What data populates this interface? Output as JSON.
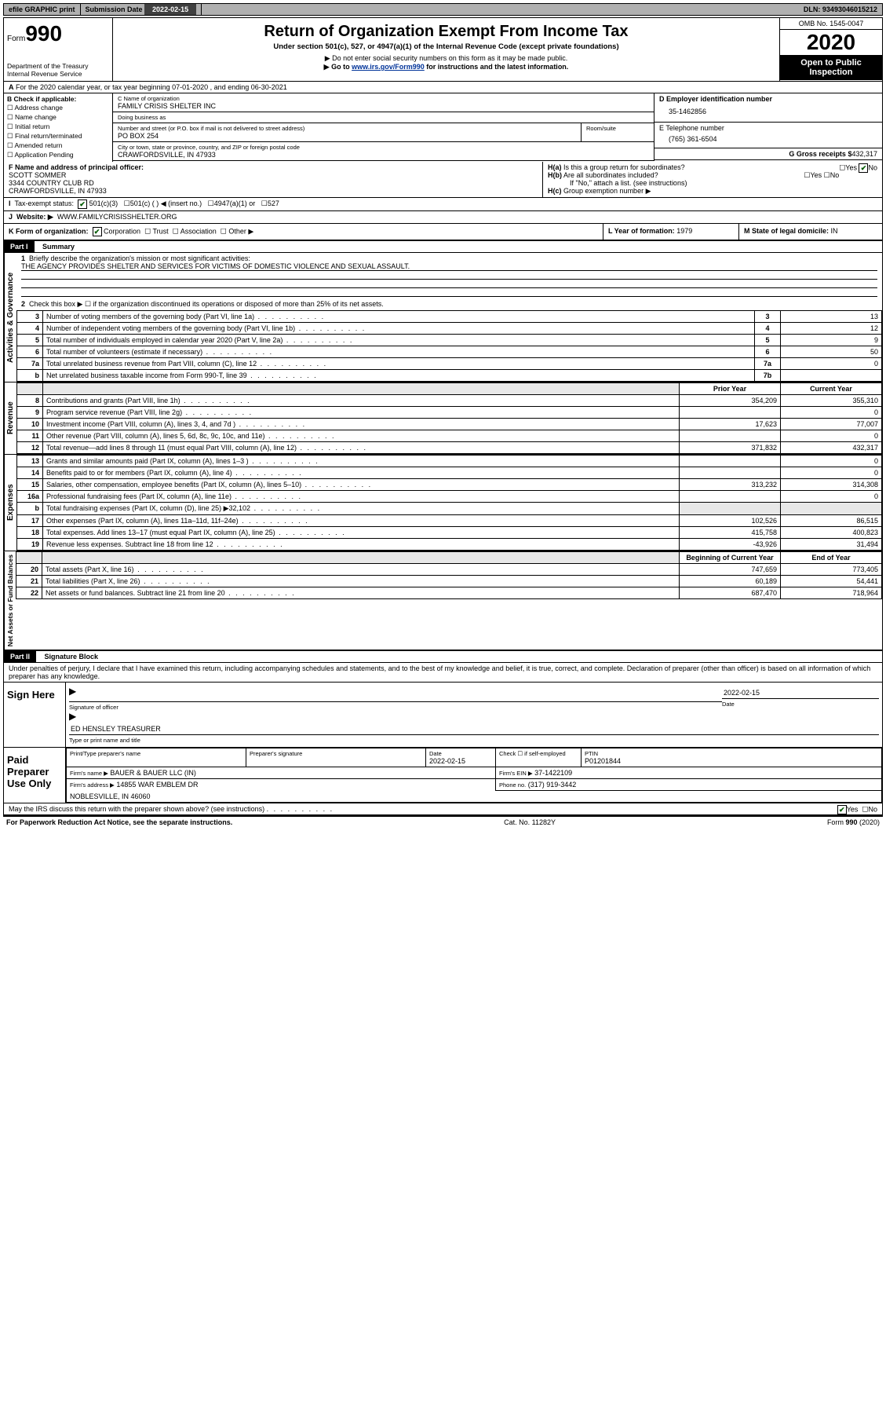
{
  "topbar": {
    "efile": "efile GRAPHIC print",
    "submission_label": "Submission Date",
    "submission_date": "2022-02-15",
    "dln_label": "DLN:",
    "dln": "93493046015212"
  },
  "header": {
    "form_label": "Form",
    "form_no": "990",
    "dept": "Department of the Treasury\nInternal Revenue Service",
    "title": "Return of Organization Exempt From Income Tax",
    "sub1": "Under section 501(c), 527, or 4947(a)(1) of the Internal Revenue Code (except private foundations)",
    "sub2": "▶ Do not enter social security numbers on this form as it may be made public.",
    "sub3_pre": "▶ Go to ",
    "sub3_link": "www.irs.gov/Form990",
    "sub3_post": " for instructions and the latest information.",
    "omb": "OMB No. 1545-0047",
    "year": "2020",
    "open": "Open to Public Inspection"
  },
  "lineA": "For the 2020 calendar year, or tax year beginning 07-01-2020   , and ending 06-30-2021",
  "colB": {
    "hdr": "B Check if applicable:",
    "opts": [
      "Address change",
      "Name change",
      "Initial return",
      "Final return/terminated",
      "Amended return",
      "Application Pending"
    ]
  },
  "org": {
    "c_label": "C Name of organization",
    "name": "FAMILY CRISIS SHELTER INC",
    "dba_label": "Doing business as",
    "dba": "",
    "addr_label": "Number and street (or P.O. box if mail is not delivered to street address)",
    "room_label": "Room/suite",
    "addr": "PO BOX 254",
    "city_label": "City or town, state or province, country, and ZIP or foreign postal code",
    "city": "CRAWFORDSVILLE, IN  47933"
  },
  "right": {
    "d_label": "D Employer identification number",
    "ein": "35-1462856",
    "e_label": "E Telephone number",
    "phone": "(765) 361-6504",
    "g_label": "G Gross receipts $",
    "gross": "432,317"
  },
  "f": {
    "label": "F  Name and address of principal officer:",
    "name": "SCOTT SOMMER",
    "addr1": "3344 COUNTRY CLUB RD",
    "addr2": "CRAWFORDSVILLE, IN  47933"
  },
  "h": {
    "a": "Is this a group return for subordinates?",
    "b": "Are all subordinates included?",
    "note": "If \"No,\" attach a list. (see instructions)",
    "c": "Group exemption number ▶"
  },
  "i": {
    "label": "Tax-exempt status:",
    "opts": [
      "501(c)(3)",
      "501(c) (  ) ◀ (insert no.)",
      "4947(a)(1) or",
      "527"
    ]
  },
  "j": {
    "label": "Website: ▶",
    "val": "WWW.FAMILYCRISISSHELTER.ORG"
  },
  "k": {
    "label": "K Form of organization:",
    "opts": [
      "Corporation",
      "Trust",
      "Association",
      "Other ▶"
    ]
  },
  "l": {
    "label": "L Year of formation:",
    "val": "1979"
  },
  "m": {
    "label": "M State of legal domicile:",
    "val": "IN"
  },
  "part1": {
    "hdr": "Part I",
    "title": "Summary"
  },
  "gov": {
    "side": "Activities & Governance",
    "l1_label": "Briefly describe the organization's mission or most significant activities:",
    "l1_text": "THE AGENCY PROVIDES SHELTER AND SERVICES FOR VICTIMS OF DOMESTIC VIOLENCE AND SEXUAL ASSAULT.",
    "l2": "Check this box ▶ ☐  if the organization discontinued its operations or disposed of more than 25% of its net assets.",
    "rows": [
      {
        "n": "3",
        "t": "Number of voting members of the governing body (Part VI, line 1a)",
        "box": "3",
        "v": "13"
      },
      {
        "n": "4",
        "t": "Number of independent voting members of the governing body (Part VI, line 1b)",
        "box": "4",
        "v": "12"
      },
      {
        "n": "5",
        "t": "Total number of individuals employed in calendar year 2020 (Part V, line 2a)",
        "box": "5",
        "v": "9"
      },
      {
        "n": "6",
        "t": "Total number of volunteers (estimate if necessary)",
        "box": "6",
        "v": "50"
      },
      {
        "n": "7a",
        "t": "Total unrelated business revenue from Part VIII, column (C), line 12",
        "box": "7a",
        "v": "0"
      },
      {
        "n": "b",
        "t": "Net unrelated business taxable income from Form 990-T, line 39",
        "box": "7b",
        "v": ""
      }
    ]
  },
  "cols": {
    "prior": "Prior Year",
    "current": "Current Year",
    "boc": "Beginning of Current Year",
    "eoy": "End of Year"
  },
  "rev": {
    "side": "Revenue",
    "rows": [
      {
        "n": "8",
        "t": "Contributions and grants (Part VIII, line 1h)",
        "p": "354,209",
        "c": "355,310"
      },
      {
        "n": "9",
        "t": "Program service revenue (Part VIII, line 2g)",
        "p": "",
        "c": "0"
      },
      {
        "n": "10",
        "t": "Investment income (Part VIII, column (A), lines 3, 4, and 7d )",
        "p": "17,623",
        "c": "77,007"
      },
      {
        "n": "11",
        "t": "Other revenue (Part VIII, column (A), lines 5, 6d, 8c, 9c, 10c, and 11e)",
        "p": "",
        "c": "0"
      },
      {
        "n": "12",
        "t": "Total revenue—add lines 8 through 11 (must equal Part VIII, column (A), line 12)",
        "p": "371,832",
        "c": "432,317"
      }
    ]
  },
  "exp": {
    "side": "Expenses",
    "rows": [
      {
        "n": "13",
        "t": "Grants and similar amounts paid (Part IX, column (A), lines 1–3 )",
        "p": "",
        "c": "0"
      },
      {
        "n": "14",
        "t": "Benefits paid to or for members (Part IX, column (A), line 4)",
        "p": "",
        "c": "0"
      },
      {
        "n": "15",
        "t": "Salaries, other compensation, employee benefits (Part IX, column (A), lines 5–10)",
        "p": "313,232",
        "c": "314,308"
      },
      {
        "n": "16a",
        "t": "Professional fundraising fees (Part IX, column (A), line 11e)",
        "p": "",
        "c": "0"
      },
      {
        "n": "b",
        "t": "Total fundraising expenses (Part IX, column (D), line 25) ▶32,102",
        "p": "GREY",
        "c": "GREY"
      },
      {
        "n": "17",
        "t": "Other expenses (Part IX, column (A), lines 11a–11d, 11f–24e)",
        "p": "102,526",
        "c": "86,515"
      },
      {
        "n": "18",
        "t": "Total expenses. Add lines 13–17 (must equal Part IX, column (A), line 25)",
        "p": "415,758",
        "c": "400,823"
      },
      {
        "n": "19",
        "t": "Revenue less expenses. Subtract line 18 from line 12",
        "p": "-43,926",
        "c": "31,494"
      }
    ]
  },
  "net": {
    "side": "Net Assets or Fund Balances",
    "rows": [
      {
        "n": "20",
        "t": "Total assets (Part X, line 16)",
        "p": "747,659",
        "c": "773,405"
      },
      {
        "n": "21",
        "t": "Total liabilities (Part X, line 26)",
        "p": "60,189",
        "c": "54,441"
      },
      {
        "n": "22",
        "t": "Net assets or fund balances. Subtract line 21 from line 20",
        "p": "687,470",
        "c": "718,964"
      }
    ]
  },
  "part2": {
    "hdr": "Part II",
    "title": "Signature Block",
    "decl": "Under penalties of perjury, I declare that I have examined this return, including accompanying schedules and statements, and to the best of my knowledge and belief, it is true, correct, and complete. Declaration of preparer (other than officer) is based on all information of which preparer has any knowledge."
  },
  "sign": {
    "here": "Sign Here",
    "sig_label": "Signature of officer",
    "date_label": "Date",
    "date": "2022-02-15",
    "name": "ED HENSLEY TREASURER",
    "name_label": "Type or print name and title"
  },
  "paid": {
    "here": "Paid Preparer Use Only",
    "print_label": "Print/Type preparer's name",
    "sig_label": "Preparer's signature",
    "date_label": "Date",
    "date": "2022-02-15",
    "check_label": "Check ☐ if self-employed",
    "ptin_label": "PTIN",
    "ptin": "P01201844",
    "firm_name_label": "Firm's name    ▶",
    "firm_name": "BAUER & BAUER LLC (IN)",
    "firm_ein_label": "Firm's EIN ▶",
    "firm_ein": "37-1422109",
    "firm_addr_label": "Firm's address ▶",
    "firm_addr1": "14855 WAR EMBLEM DR",
    "firm_addr2": "NOBLESVILLE, IN  46060",
    "phone_label": "Phone no.",
    "phone": "(317) 919-3442"
  },
  "discuss": "May the IRS discuss this return with the preparer shown above? (see instructions)",
  "footer": {
    "left": "For Paperwork Reduction Act Notice, see the separate instructions.",
    "mid": "Cat. No. 11282Y",
    "right": "Form 990 (2020)"
  }
}
